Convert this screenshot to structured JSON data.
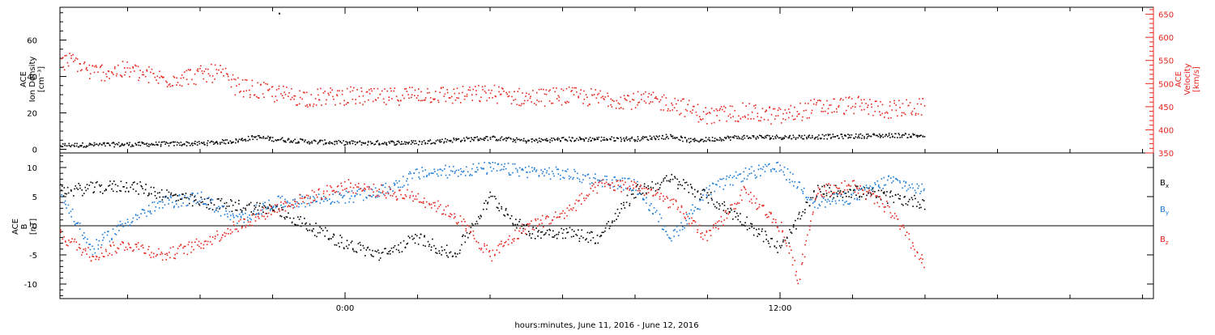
{
  "chart_data": [
    {
      "type": "scatter",
      "panel": "top",
      "title": "",
      "xlabel": "hours:minutes, June 11, 2016 - June 12, 2016",
      "x_tick_labels": [
        "0:00",
        "12:00"
      ],
      "ylabel": [
        "ACE",
        "Ion Density",
        "[cm⁻³]"
      ],
      "ylim": [
        -2,
        78
      ],
      "y_ticks": [
        0,
        20,
        40,
        60
      ],
      "y2label": [
        "ACE",
        "Velocity",
        "[km/s]"
      ],
      "y2lim": [
        350,
        665
      ],
      "y2_ticks": [
        350,
        400,
        450,
        500,
        550,
        600,
        650
      ],
      "grid": false,
      "series": [
        {
          "axis": "left",
          "color": "#000000",
          "points": [
            [
              "06-10 16:00",
              2.5
            ],
            [
              "06-10 18:00",
              3.0
            ],
            [
              "06-10 20:00",
              3.5
            ],
            [
              "06-10 21:00",
              5.0
            ],
            [
              "06-10 21:30",
              7.0
            ],
            [
              "06-10 22:00",
              6.0
            ],
            [
              "06-10 22:10",
              75.0
            ],
            [
              "06-10 23:00",
              4.5
            ],
            [
              "06-11 00:00",
              3.8
            ],
            [
              "06-11 02:00",
              4.0
            ],
            [
              "06-11 03:00",
              5.5
            ],
            [
              "06-11 04:00",
              6.5
            ],
            [
              "06-11 05:00",
              5.0
            ],
            [
              "06-11 06:00",
              5.8
            ],
            [
              "06-11 07:00",
              6.0
            ],
            [
              "06-11 08:00",
              6.0
            ],
            [
              "06-11 09:00",
              7.5
            ],
            [
              "06-11 09:30",
              5.0
            ],
            [
              "06-11 10:30",
              6.5
            ],
            [
              "06-11 11:00",
              7.0
            ],
            [
              "06-11 12:00",
              7.0
            ],
            [
              "06-11 13:00",
              7.2
            ],
            [
              "06-11 14:00",
              7.5
            ],
            [
              "06-11 15:00",
              8.0
            ],
            [
              "06-11 16:00",
              7.8
            ]
          ]
        },
        {
          "axis": "right",
          "color": "#e8241c",
          "points": [
            [
              "06-10 16:00",
              545
            ],
            [
              "06-10 16:30",
              550
            ],
            [
              "06-10 17:00",
              525
            ],
            [
              "06-10 18:00",
              530
            ],
            [
              "06-10 19:00",
              510
            ],
            [
              "06-10 20:00",
              520
            ],
            [
              "06-10 20:30",
              525
            ],
            [
              "06-10 21:00",
              495
            ],
            [
              "06-10 22:00",
              480
            ],
            [
              "06-10 23:00",
              470
            ],
            [
              "06-11 00:00",
              475
            ],
            [
              "06-11 01:00",
              470
            ],
            [
              "06-11 02:00",
              480
            ],
            [
              "06-11 03:00",
              475
            ],
            [
              "06-11 04:00",
              480
            ],
            [
              "06-11 05:00",
              470
            ],
            [
              "06-11 06:00",
              475
            ],
            [
              "06-11 07:00",
              470
            ],
            [
              "06-11 08:00",
              465
            ],
            [
              "06-11 09:00",
              460
            ],
            [
              "06-11 10:00",
              430
            ],
            [
              "06-11 11:00",
              440
            ],
            [
              "06-11 11:30",
              435
            ],
            [
              "06-11 12:00",
              430
            ],
            [
              "06-11 13:00",
              450
            ],
            [
              "06-11 14:00",
              455
            ],
            [
              "06-11 15:00",
              445
            ],
            [
              "06-11 16:00",
              450
            ]
          ]
        }
      ]
    },
    {
      "type": "scatter",
      "panel": "bottom",
      "title": "",
      "xlabel": "hours:minutes, June 11, 2016 - June 12, 2016",
      "x_tick_labels": [
        "0:00",
        "12:00"
      ],
      "ylabel": [
        "ACE",
        "B",
        "[nT]"
      ],
      "ylim": [
        -12.5,
        12.5
      ],
      "y_ticks": [
        -10,
        -5,
        0,
        5,
        10
      ],
      "zero_line": true,
      "grid": false,
      "legend_position": "right",
      "series": [
        {
          "name": "Bx",
          "color": "#000000",
          "points": [
            [
              "06-10 16:00",
              6
            ],
            [
              "06-10 18:00",
              7
            ],
            [
              "06-10 20:00",
              4
            ],
            [
              "06-10 22:00",
              3
            ],
            [
              "06-11 00:00",
              -3
            ],
            [
              "06-11 01:00",
              -5
            ],
            [
              "06-11 02:00",
              -2
            ],
            [
              "06-11 03:00",
              -5
            ],
            [
              "06-11 04:00",
              5
            ],
            [
              "06-11 05:00",
              -1
            ],
            [
              "06-11 06:00",
              -1
            ],
            [
              "06-11 07:00",
              -2
            ],
            [
              "06-11 08:00",
              6
            ],
            [
              "06-11 09:00",
              8
            ],
            [
              "06-11 10:00",
              5
            ],
            [
              "06-11 11:00",
              1
            ],
            [
              "06-11 12:00",
              -4
            ],
            [
              "06-11 13:00",
              6
            ],
            [
              "06-11 14:00",
              6
            ],
            [
              "06-11 15:00",
              5
            ],
            [
              "06-11 16:00",
              4
            ]
          ]
        },
        {
          "name": "By",
          "color": "#1a7ad8",
          "points": [
            [
              "06-10 16:00",
              7
            ],
            [
              "06-10 17:00",
              -4
            ],
            [
              "06-10 18:00",
              1
            ],
            [
              "06-10 19:00",
              4
            ],
            [
              "06-10 20:00",
              5
            ],
            [
              "06-10 21:00",
              1
            ],
            [
              "06-10 22:00",
              4
            ],
            [
              "06-11 00:00",
              5
            ],
            [
              "06-11 01:00",
              6
            ],
            [
              "06-11 02:00",
              9
            ],
            [
              "06-11 04:00",
              10
            ],
            [
              "06-11 06:00",
              9
            ],
            [
              "06-11 07:00",
              8
            ],
            [
              "06-11 08:00",
              7
            ],
            [
              "06-11 09:00",
              -2
            ],
            [
              "06-11 10:00",
              6
            ],
            [
              "06-11 11:00",
              9
            ],
            [
              "06-11 12:00",
              10
            ],
            [
              "06-11 13:00",
              4
            ],
            [
              "06-11 14:00",
              5
            ],
            [
              "06-11 15:00",
              8
            ],
            [
              "06-11 16:00",
              6
            ]
          ]
        },
        {
          "name": "Bz",
          "color": "#e8241c",
          "points": [
            [
              "06-10 16:00",
              -1
            ],
            [
              "06-10 17:00",
              -5
            ],
            [
              "06-10 18:00",
              -3
            ],
            [
              "06-10 19:00",
              -5
            ],
            [
              "06-10 20:00",
              -3
            ],
            [
              "06-10 22:00",
              3
            ],
            [
              "06-11 00:00",
              7
            ],
            [
              "06-11 01:00",
              6
            ],
            [
              "06-11 02:00",
              5
            ],
            [
              "06-11 03:00",
              2
            ],
            [
              "06-11 04:00",
              -5
            ],
            [
              "06-11 05:00",
              0
            ],
            [
              "06-11 06:00",
              2
            ],
            [
              "06-11 07:00",
              7
            ],
            [
              "06-11 08:00",
              7
            ],
            [
              "06-11 09:00",
              4
            ],
            [
              "06-11 10:00",
              -2
            ],
            [
              "06-11 11:00",
              6
            ],
            [
              "06-11 12:00",
              0
            ],
            [
              "06-11 12:30",
              -9
            ],
            [
              "06-11 13:00",
              6
            ],
            [
              "06-11 14:00",
              7
            ],
            [
              "06-11 15:00",
              3
            ],
            [
              "06-11 16:00",
              -7
            ]
          ]
        }
      ]
    }
  ]
}
